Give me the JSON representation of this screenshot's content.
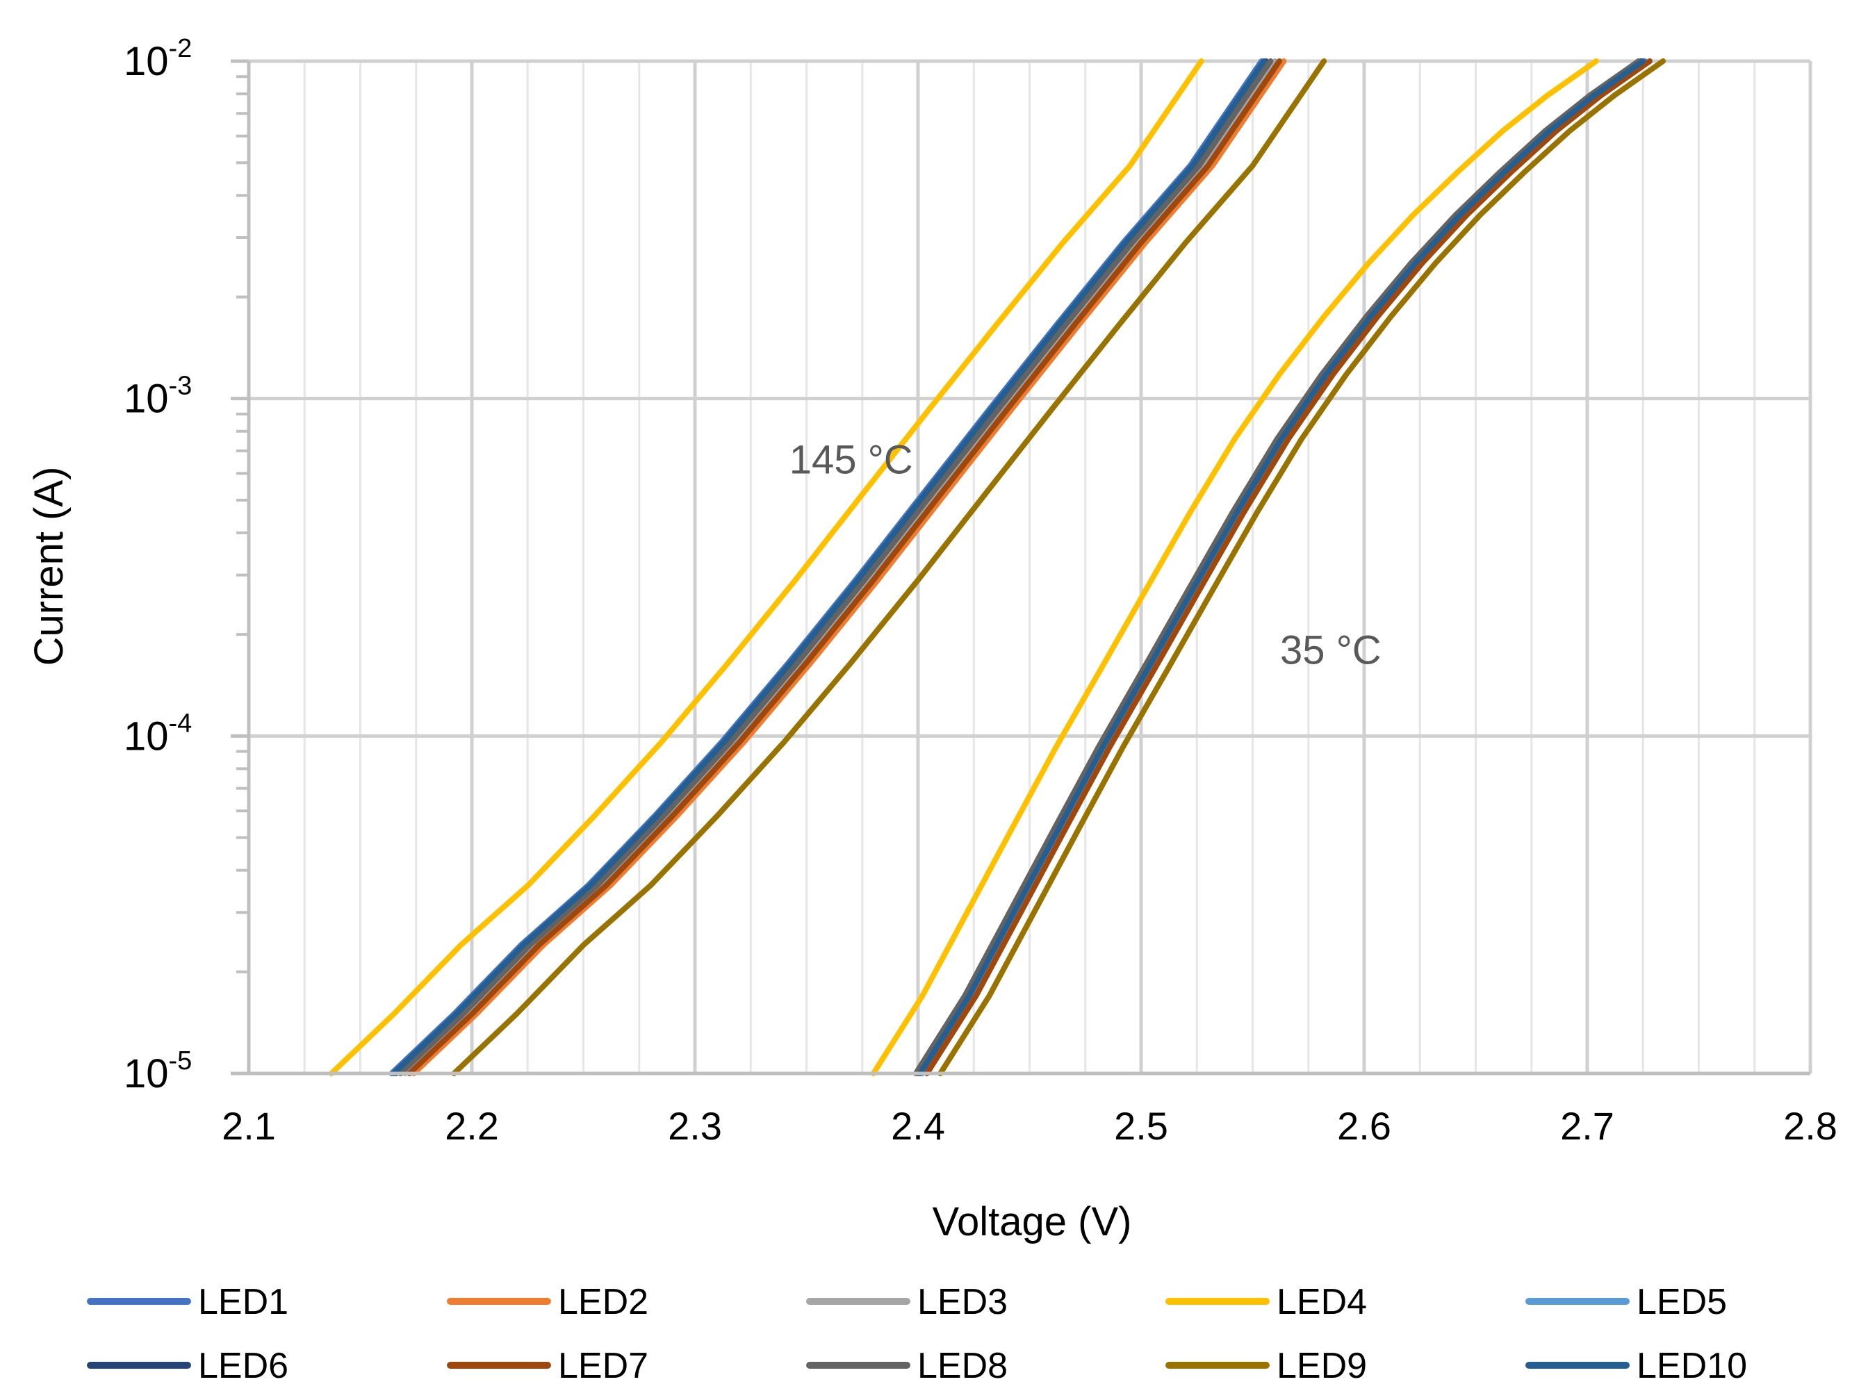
{
  "chart_data": {
    "type": "line",
    "title": "",
    "xlabel": "Voltage (V)",
    "ylabel": "Current (A)",
    "xlim": [
      2.1,
      2.8
    ],
    "ylim": [
      1e-05,
      0.01
    ],
    "yscale": "log",
    "grid": true,
    "x_ticks": [
      "2.1",
      "2.2",
      "2.3",
      "2.4",
      "2.5",
      "2.6",
      "2.7",
      "2.8"
    ],
    "y_ticks": [
      {
        "base": "10",
        "exp": "-2"
      },
      {
        "base": "10",
        "exp": "-3"
      },
      {
        "base": "10",
        "exp": "-4"
      },
      {
        "base": "10",
        "exp": "-5"
      }
    ],
    "legend_position": "bottom",
    "annotations": [
      {
        "text": "145 °C",
        "x": 2.37,
        "y": 0.00066
      },
      {
        "text": "35 °C",
        "x": 2.585,
        "y": 0.00018
      }
    ],
    "series": [
      {
        "name": "LED1",
        "color": "#4472C4",
        "offset145": 0.002,
        "offset35": 0.003
      },
      {
        "name": "LED2",
        "color": "#ED7D31",
        "offset145": 0.012,
        "offset35": 0.006
      },
      {
        "name": "LED3",
        "color": "#A5A5A5",
        "offset145": 0.008,
        "offset35": 0.006
      },
      {
        "name": "LED4",
        "color": "#FFC000",
        "offset145": -0.025,
        "offset35": -0.018
      },
      {
        "name": "LED5",
        "color": "#5B9BD5",
        "offset145": 0.006,
        "offset35": 0.004
      },
      {
        "name": "LED6",
        "color": "#264478",
        "offset145": 0.004,
        "offset35": 0.002
      },
      {
        "name": "LED7",
        "color": "#9E480E",
        "offset145": 0.01,
        "offset35": 0.006
      },
      {
        "name": "LED8",
        "color": "#636363",
        "offset145": 0.006,
        "offset35": 0.001
      },
      {
        "name": "LED9",
        "color": "#997300",
        "offset145": 0.03,
        "offset35": 0.012
      },
      {
        "name": "LED10",
        "color": "#255E91",
        "offset145": 0.003,
        "offset35": 0.003
      }
    ],
    "base_curves": {
      "145C": [
        [
          2.162,
          1e-05
        ],
        [
          2.19,
          1.5e-05
        ],
        [
          2.22,
          2.4e-05
        ],
        [
          2.25,
          3.6e-05
        ],
        [
          2.28,
          5.8e-05
        ],
        [
          2.31,
          9.6e-05
        ],
        [
          2.34,
          0.000165
        ],
        [
          2.37,
          0.00029
        ],
        [
          2.4,
          0.00052
        ],
        [
          2.43,
          0.00093
        ],
        [
          2.46,
          0.00165
        ],
        [
          2.49,
          0.0029
        ],
        [
          2.52,
          0.0049
        ],
        [
          2.552,
          0.01
        ]
      ],
      "35C": [
        [
          2.398,
          1e-05
        ],
        [
          2.42,
          1.7e-05
        ],
        [
          2.44,
          3e-05
        ],
        [
          2.46,
          5.3e-05
        ],
        [
          2.48,
          9.3e-05
        ],
        [
          2.5,
          0.000158
        ],
        [
          2.52,
          0.00027
        ],
        [
          2.54,
          0.00046
        ],
        [
          2.56,
          0.00076
        ],
        [
          2.58,
          0.00118
        ],
        [
          2.6,
          0.00175
        ],
        [
          2.62,
          0.00252
        ],
        [
          2.64,
          0.0035
        ],
        [
          2.66,
          0.0047
        ],
        [
          2.68,
          0.0062
        ],
        [
          2.7,
          0.0079
        ],
        [
          2.722,
          0.01
        ]
      ]
    }
  }
}
